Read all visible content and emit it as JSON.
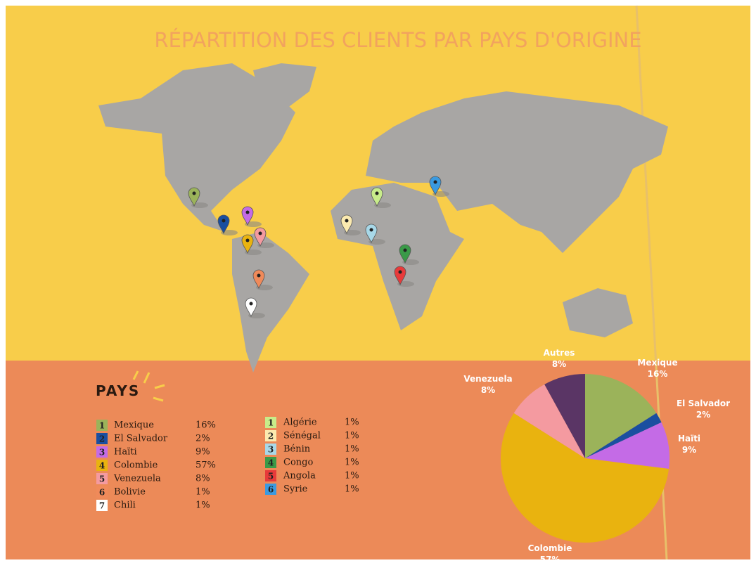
{
  "title": "RÉPARTITION DES CLIENTS PAR PAYS D'ORIGINE",
  "legend_heading": "PAYS",
  "legend_left": [
    {
      "num": "1",
      "name": "Mexique",
      "pct": "16%",
      "color": "#9bb35a"
    },
    {
      "num": "2",
      "name": "El Salvador",
      "pct": "2%",
      "color": "#1a4fa0"
    },
    {
      "num": "3",
      "name": "Haïti",
      "pct": "9%",
      "color": "#c46be6"
    },
    {
      "num": "4",
      "name": "Colombie",
      "pct": "57%",
      "color": "#e9b30f"
    },
    {
      "num": "5",
      "name": "Venezuela",
      "pct": "8%",
      "color": "#f49aa0"
    },
    {
      "num": "6",
      "name": "Bolivie",
      "pct": "1%",
      "color": "#f08a5a"
    },
    {
      "num": "7",
      "name": "Chili",
      "pct": "1%",
      "color": "#ffffff"
    }
  ],
  "legend_right": [
    {
      "num": "1",
      "name": "Algérie",
      "pct": "1%",
      "color": "#c8ec8a"
    },
    {
      "num": "2",
      "name": "Sénégal",
      "pct": "1%",
      "color": "#fbeab0"
    },
    {
      "num": "3",
      "name": "Bénin",
      "pct": "1%",
      "color": "#a8d8e8"
    },
    {
      "num": "4",
      "name": "Congo",
      "pct": "1%",
      "color": "#3a9a48"
    },
    {
      "num": "5",
      "name": "Angola",
      "pct": "1%",
      "color": "#e83a3a"
    },
    {
      "num": "6",
      "name": "Syrie",
      "pct": "1%",
      "color": "#3a9ae0"
    }
  ],
  "chart_data": {
    "type": "pie",
    "categories": [
      "Mexique",
      "El Salvador",
      "Haïti",
      "Colombie",
      "Venezuela",
      "Autres"
    ],
    "values": [
      16,
      2,
      9,
      57,
      8,
      8
    ],
    "value_labels": [
      "16%",
      "2%",
      "9%",
      "57%",
      "8%",
      "8%"
    ],
    "colors": [
      "#9bb35a",
      "#1a4fa0",
      "#c46be6",
      "#e9b30f",
      "#f49aa0",
      "#5a3565"
    ]
  }
}
